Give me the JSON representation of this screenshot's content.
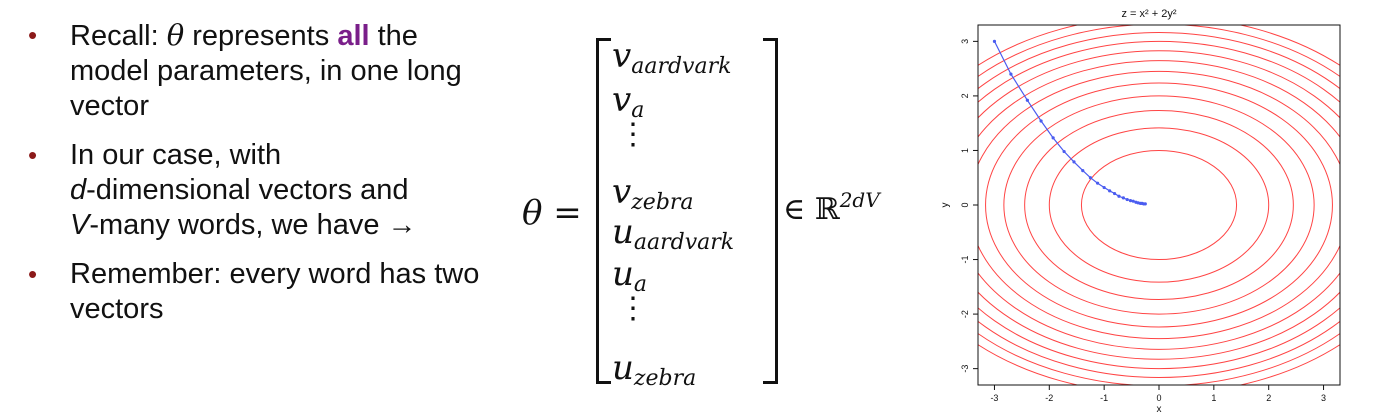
{
  "bullets": [
    {
      "prefix": "Recall: ",
      "math": "θ",
      "middle": " represents ",
      "emph": "all",
      "suffix": " the model parameters, in one long vector"
    },
    {
      "line1": "In our case, with",
      "d": "d",
      "line2": "-dimensional vectors and",
      "v": "V",
      "line3": "-many words, we have →"
    },
    {
      "text": "Remember: every word has two vectors"
    }
  ],
  "equation": {
    "lhs": "θ =",
    "entries": [
      {
        "base": "v",
        "sub": "aardvark"
      },
      {
        "base": "v",
        "sub": "a"
      },
      {
        "dots": "⋮"
      },
      {
        "base": "v",
        "sub": "zebra"
      },
      {
        "base": "u",
        "sub": "aardvark"
      },
      {
        "base": "u",
        "sub": "a"
      },
      {
        "dots": "⋮"
      },
      {
        "base": "u",
        "sub": "zebra"
      }
    ],
    "member": "∈ ℝ",
    "member_sup": "2dV"
  },
  "chart_data": {
    "type": "contour",
    "title": "z = x² + 2y²",
    "xlabel": "x",
    "ylabel": "y",
    "xlim": [
      -3.3,
      3.3
    ],
    "ylim": [
      -3.3,
      3.3
    ],
    "x_ticks": [
      "-3",
      "-2",
      "-1",
      "0",
      "1",
      "2",
      "3"
    ],
    "y_ticks": [
      "-3",
      "-2",
      "-1",
      "0",
      "1",
      "2",
      "3"
    ],
    "contour_levels": [
      2,
      4,
      6,
      8,
      10,
      12,
      14,
      16,
      18,
      20,
      22,
      24
    ],
    "contour_color": "#ff4444",
    "path_color": "#4a5cf0",
    "descent_path": [
      {
        "x": -3.0,
        "y": 3.0
      },
      {
        "x": -2.7,
        "y": 2.4
      },
      {
        "x": -2.4,
        "y": 1.92
      },
      {
        "x": -2.15,
        "y": 1.54
      },
      {
        "x": -1.93,
        "y": 1.23
      },
      {
        "x": -1.73,
        "y": 0.98
      },
      {
        "x": -1.55,
        "y": 0.79
      },
      {
        "x": -1.39,
        "y": 0.63
      },
      {
        "x": -1.25,
        "y": 0.5
      },
      {
        "x": -1.12,
        "y": 0.4
      },
      {
        "x": -1.0,
        "y": 0.32
      },
      {
        "x": -0.9,
        "y": 0.26
      },
      {
        "x": -0.81,
        "y": 0.21
      },
      {
        "x": -0.73,
        "y": 0.16
      },
      {
        "x": -0.65,
        "y": 0.13
      },
      {
        "x": -0.58,
        "y": 0.1
      },
      {
        "x": -0.52,
        "y": 0.08
      },
      {
        "x": -0.47,
        "y": 0.07
      },
      {
        "x": -0.42,
        "y": 0.05
      },
      {
        "x": -0.38,
        "y": 0.04
      },
      {
        "x": -0.34,
        "y": 0.03
      },
      {
        "x": -0.31,
        "y": 0.03
      },
      {
        "x": -0.28,
        "y": 0.02
      },
      {
        "x": -0.25,
        "y": 0.02
      }
    ]
  }
}
